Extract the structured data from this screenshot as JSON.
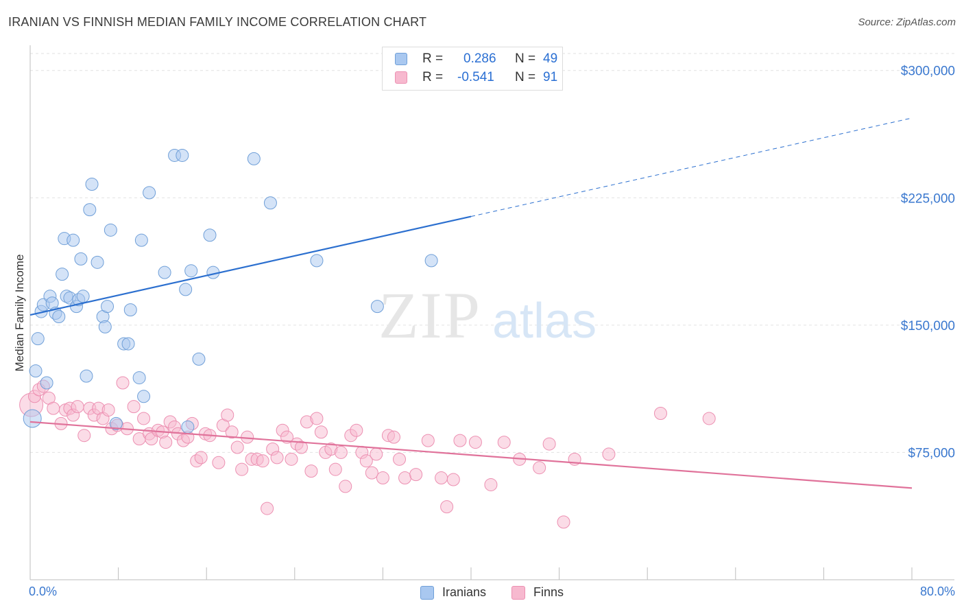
{
  "header": {
    "title": "IRANIAN VS FINNISH MEDIAN FAMILY INCOME CORRELATION CHART",
    "source": "Source: ZipAtlas.com"
  },
  "watermark": {
    "zip": "ZIP",
    "atlas": "atlas"
  },
  "legend": {
    "rows": [
      {
        "r_label": "R = ",
        "r_value": "0.286",
        "n_label": "N = ",
        "n_value": "49",
        "color": "#a9c8f0"
      },
      {
        "r_label": "R = ",
        "r_value": "-0.541",
        "n_label": "N = ",
        "n_value": "91",
        "color": "#f7b9cf"
      }
    ]
  },
  "colors": {
    "iranians_fill": "#a9c8f0",
    "iranians_stroke": "#6f9fd8",
    "iranians_line": "#2b6fcf",
    "finns_fill": "#f7b9cf",
    "finns_stroke": "#ec8fb1",
    "finns_line": "#e0729a",
    "grid": "#e2e2e2",
    "axis_label": "#3a78cf"
  },
  "chart_data": {
    "type": "scatter",
    "title": "IRANIAN VS FINNISH MEDIAN FAMILY INCOME CORRELATION CHART",
    "xlabel": "",
    "ylabel": "Median Family Income",
    "xlim": [
      0,
      80
    ],
    "ylim": [
      0,
      310000
    ],
    "x_tick_labels": [
      "0.0%",
      "80.0%"
    ],
    "y_ticks": [
      75000,
      150000,
      225000,
      300000
    ],
    "y_tick_labels": [
      "$75,000",
      "$150,000",
      "$225,000",
      "$300,000"
    ],
    "grid": true,
    "legend_position": "bottom-center",
    "series": [
      {
        "name": "Iranians",
        "r": 0.286,
        "n": 49,
        "trend": {
          "x0": 0,
          "y0": 156000,
          "x1": 80,
          "y1": 272000,
          "solid_until_x": 40
        },
        "points": [
          [
            0.2,
            95000
          ],
          [
            0.5,
            123000
          ],
          [
            0.7,
            142000
          ],
          [
            1.0,
            158000
          ],
          [
            1.2,
            162000
          ],
          [
            1.5,
            116000
          ],
          [
            1.8,
            167000
          ],
          [
            2.0,
            163000
          ],
          [
            2.3,
            157000
          ],
          [
            2.6,
            155000
          ],
          [
            2.9,
            180000
          ],
          [
            3.1,
            201000
          ],
          [
            3.3,
            167000
          ],
          [
            3.6,
            166000
          ],
          [
            3.9,
            200000
          ],
          [
            4.2,
            161000
          ],
          [
            4.4,
            165000
          ],
          [
            4.6,
            189000
          ],
          [
            4.8,
            167000
          ],
          [
            5.1,
            120000
          ],
          [
            5.4,
            218000
          ],
          [
            5.6,
            233000
          ],
          [
            6.1,
            187000
          ],
          [
            6.6,
            155000
          ],
          [
            6.8,
            149000
          ],
          [
            7.0,
            161000
          ],
          [
            7.3,
            206000
          ],
          [
            7.8,
            92000
          ],
          [
            8.5,
            139000
          ],
          [
            8.9,
            139000
          ],
          [
            9.1,
            159000
          ],
          [
            9.9,
            119000
          ],
          [
            10.1,
            200000
          ],
          [
            10.3,
            108000
          ],
          [
            10.8,
            228000
          ],
          [
            12.2,
            181000
          ],
          [
            13.1,
            250000
          ],
          [
            13.8,
            250000
          ],
          [
            14.1,
            171000
          ],
          [
            14.3,
            90000
          ],
          [
            14.6,
            182000
          ],
          [
            15.3,
            130000
          ],
          [
            16.3,
            203000
          ],
          [
            16.6,
            181000
          ],
          [
            20.3,
            248000
          ],
          [
            21.8,
            222000
          ],
          [
            26.0,
            188000
          ],
          [
            31.5,
            161000
          ],
          [
            36.4,
            188000
          ]
        ]
      },
      {
        "name": "Finns",
        "r": -0.541,
        "n": 91,
        "trend": {
          "x0": 0,
          "y0": 93000,
          "x1": 80,
          "y1": 54000
        },
        "points": [
          [
            0.1,
            103000
          ],
          [
            0.4,
            108000
          ],
          [
            0.8,
            112000
          ],
          [
            1.2,
            114000
          ],
          [
            1.7,
            107000
          ],
          [
            2.1,
            101000
          ],
          [
            2.8,
            92000
          ],
          [
            3.2,
            100000
          ],
          [
            3.6,
            101000
          ],
          [
            3.9,
            97000
          ],
          [
            4.3,
            102000
          ],
          [
            4.9,
            85000
          ],
          [
            5.4,
            101000
          ],
          [
            5.8,
            97000
          ],
          [
            6.2,
            101000
          ],
          [
            6.6,
            95000
          ],
          [
            7.1,
            100000
          ],
          [
            7.4,
            89000
          ],
          [
            7.9,
            91000
          ],
          [
            8.4,
            116000
          ],
          [
            8.8,
            89000
          ],
          [
            9.4,
            102000
          ],
          [
            9.9,
            83000
          ],
          [
            10.3,
            95000
          ],
          [
            10.8,
            86000
          ],
          [
            11.0,
            83000
          ],
          [
            11.6,
            88000
          ],
          [
            12.0,
            87000
          ],
          [
            12.3,
            81000
          ],
          [
            12.7,
            93000
          ],
          [
            13.1,
            90000
          ],
          [
            13.4,
            86000
          ],
          [
            13.9,
            82000
          ],
          [
            14.3,
            84000
          ],
          [
            14.7,
            92000
          ],
          [
            15.1,
            70000
          ],
          [
            15.5,
            72000
          ],
          [
            15.9,
            86000
          ],
          [
            16.3,
            85000
          ],
          [
            17.1,
            69000
          ],
          [
            17.5,
            91000
          ],
          [
            17.9,
            97000
          ],
          [
            18.3,
            87000
          ],
          [
            18.8,
            78000
          ],
          [
            19.2,
            65000
          ],
          [
            19.7,
            84000
          ],
          [
            20.1,
            71000
          ],
          [
            20.6,
            71000
          ],
          [
            21.1,
            70000
          ],
          [
            21.5,
            42000
          ],
          [
            22.0,
            77000
          ],
          [
            22.4,
            72000
          ],
          [
            22.9,
            88000
          ],
          [
            23.3,
            84000
          ],
          [
            23.7,
            71000
          ],
          [
            24.2,
            80000
          ],
          [
            24.6,
            78000
          ],
          [
            25.1,
            93000
          ],
          [
            25.5,
            64000
          ],
          [
            26.0,
            95000
          ],
          [
            26.4,
            87000
          ],
          [
            26.8,
            75000
          ],
          [
            27.3,
            77000
          ],
          [
            27.7,
            65000
          ],
          [
            28.2,
            75000
          ],
          [
            28.6,
            55000
          ],
          [
            29.1,
            85000
          ],
          [
            29.6,
            88000
          ],
          [
            30.1,
            75000
          ],
          [
            30.5,
            70000
          ],
          [
            31.0,
            63000
          ],
          [
            31.4,
            74000
          ],
          [
            32.0,
            60000
          ],
          [
            32.5,
            85000
          ],
          [
            33.0,
            84000
          ],
          [
            33.5,
            71000
          ],
          [
            34.0,
            60000
          ],
          [
            35.0,
            62000
          ],
          [
            36.1,
            82000
          ],
          [
            37.3,
            60000
          ],
          [
            37.8,
            43000
          ],
          [
            38.4,
            59000
          ],
          [
            39.0,
            82000
          ],
          [
            40.4,
            81000
          ],
          [
            41.8,
            56000
          ],
          [
            43.0,
            81000
          ],
          [
            44.4,
            71000
          ],
          [
            46.2,
            66000
          ],
          [
            47.1,
            80000
          ],
          [
            48.4,
            34000
          ],
          [
            49.4,
            71000
          ]
        ]
      }
    ]
  },
  "extra_finns": [
    [
      52.5,
      74000
    ],
    [
      57.2,
      98000
    ],
    [
      61.6,
      95000
    ]
  ],
  "bottom_legend": {
    "items": [
      "Iranians",
      "Finns"
    ]
  }
}
